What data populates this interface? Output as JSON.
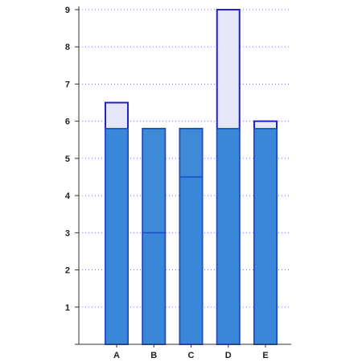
{
  "chart_data": {
    "type": "bar",
    "title": "",
    "xlabel": "",
    "ylabel": "",
    "ylim": [
      0,
      9
    ],
    "yticks": [
      "1",
      "2",
      "3",
      "4",
      "5",
      "6",
      "7",
      "8",
      "9"
    ],
    "grid": true,
    "categories": [
      "A",
      "B",
      "C",
      "D",
      "E"
    ],
    "series": [
      {
        "values": [
          6.5,
          5.8,
          5.8,
          9.0,
          6.0
        ]
      },
      {
        "values": [
          5.8,
          5.8,
          5.8,
          5.8,
          5.8
        ]
      },
      {
        "values": [
          5.8,
          3.0,
          4.5,
          5.8,
          5.8
        ]
      }
    ],
    "colors": {
      "outline_bar_fill": "#e6e6fa",
      "outline_bar_stroke": "#2222cc",
      "background_bar_fill": "#3e8ad6",
      "front_bar_fill": "#3a86d8",
      "front_bar_stroke": "#1a4fc8",
      "grid": "#7b7be0",
      "axis": "#333333"
    }
  }
}
